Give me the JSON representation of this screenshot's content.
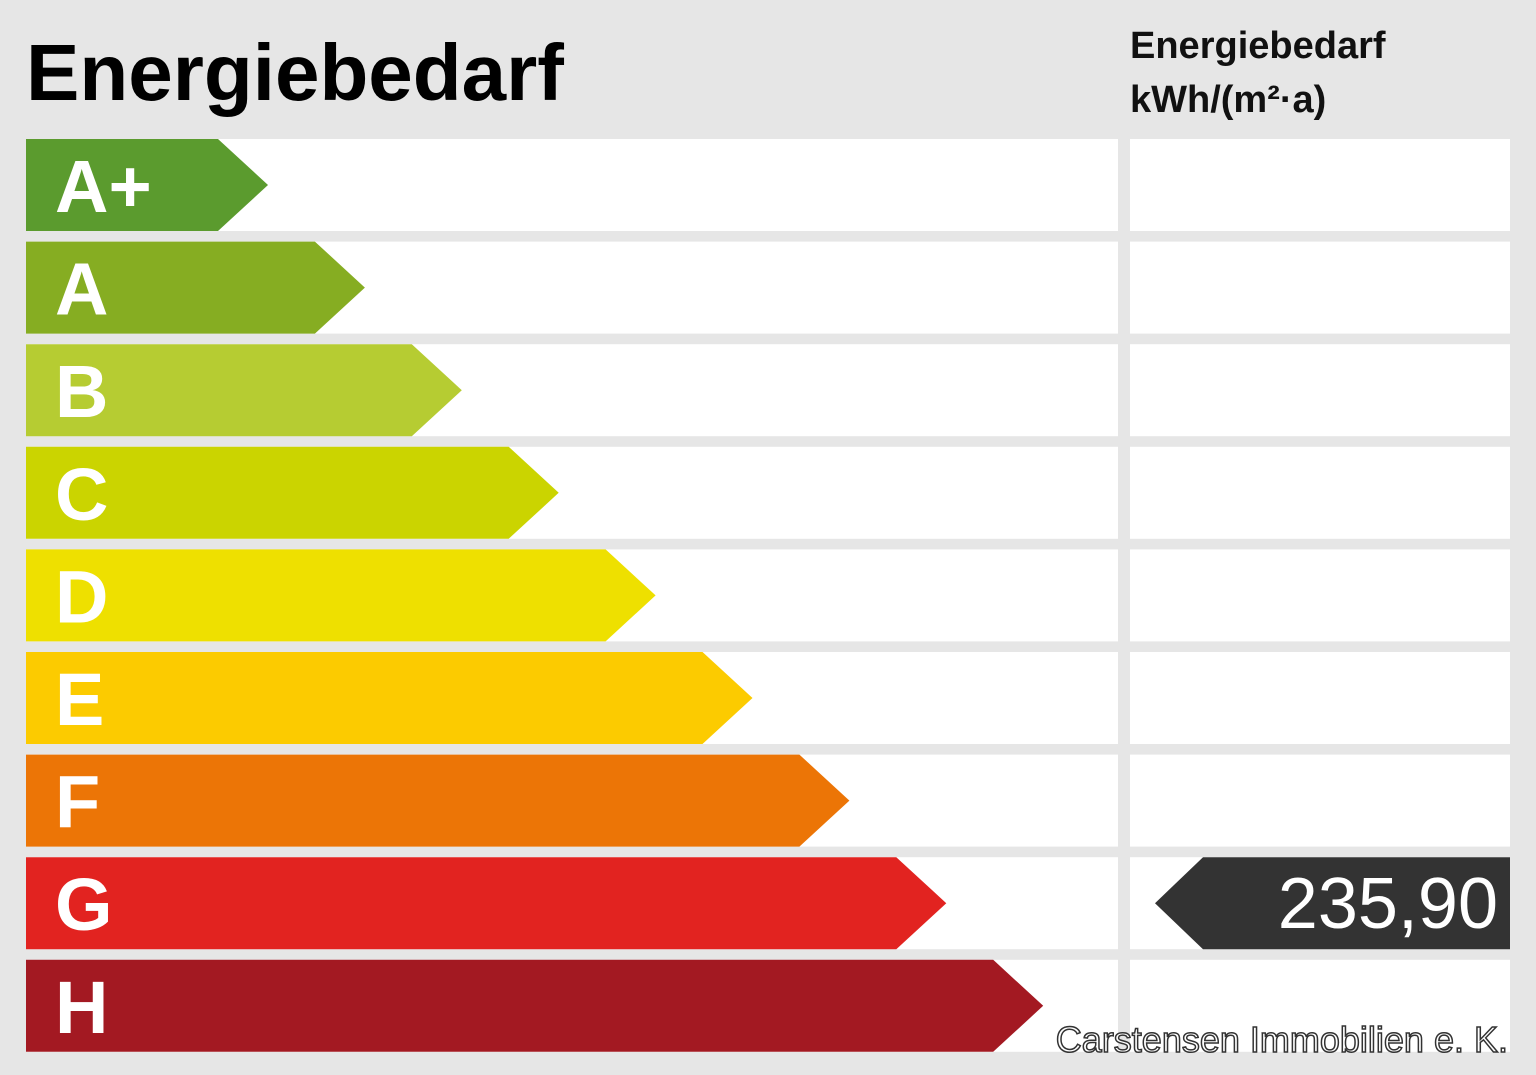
{
  "header": {
    "title": "Energiebedarf",
    "unit_title": "Energiebedarf",
    "unit": "kWh/(m²·a)"
  },
  "classes": [
    {
      "label": "A+",
      "color": "#5b9b2e"
    },
    {
      "label": "A",
      "color": "#86ad22"
    },
    {
      "label": "B",
      "color": "#b6cc32"
    },
    {
      "label": "C",
      "color": "#cbd400"
    },
    {
      "label": "D",
      "color": "#eee000"
    },
    {
      "label": "E",
      "color": "#fccb00"
    },
    {
      "label": "F",
      "color": "#ec7506"
    },
    {
      "label": "G",
      "color": "#e22320"
    },
    {
      "label": "H",
      "color": "#a31922",
      "note": null
    },
    {
      "label": null
    }
  ],
  "value": {
    "class": "G",
    "label": "235,90",
    "color": "#333333"
  },
  "footer": "Carstensen Immobilien e. K."
}
